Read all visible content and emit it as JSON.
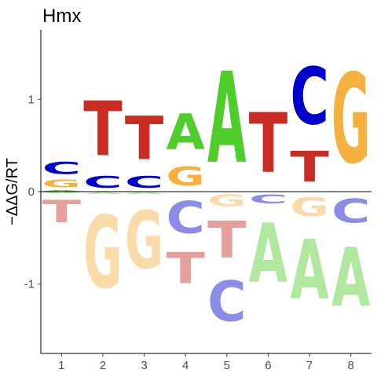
{
  "chart_data": {
    "type": "sequence-logo",
    "title": "Hmx",
    "ylabel": "−ΔΔG/RT",
    "xlabel": "",
    "ylim": [
      -1.75,
      1.75
    ],
    "yticks": [
      -1,
      0,
      1
    ],
    "positions": [
      "1",
      "2",
      "3",
      "4",
      "5",
      "6",
      "7",
      "8"
    ],
    "colors": {
      "A": "#4fcd2a",
      "C": "#0000cc",
      "G": "#f5b040",
      "T": "#c82c22"
    },
    "columns": [
      {
        "position": "1",
        "above": [
          {
            "base": "A",
            "value": 0.02
          },
          {
            "base": "G",
            "value": 0.13
          },
          {
            "base": "C",
            "value": 0.21
          }
        ],
        "below": [
          {
            "base": "A",
            "value": 0.02
          },
          {
            "base": "T",
            "value": 0.39
          }
        ]
      },
      {
        "position": "2",
        "above": [
          {
            "base": "C",
            "value": 0.2
          },
          {
            "base": "T",
            "value": 0.95
          }
        ],
        "below": [
          {
            "base": "A",
            "value": 0.03
          },
          {
            "base": "G",
            "value": 1.26
          }
        ]
      },
      {
        "position": "3",
        "above": [
          {
            "base": "C",
            "value": 0.2
          },
          {
            "base": "T",
            "value": 0.75
          }
        ],
        "below": [
          {
            "base": "A",
            "value": 0.03
          },
          {
            "base": "G",
            "value": 1.0
          }
        ]
      },
      {
        "position": "4",
        "above": [
          {
            "base": "G",
            "value": 0.33
          },
          {
            "base": "A",
            "value": 0.62
          }
        ],
        "below": [
          {
            "base": "C",
            "value": 0.56
          },
          {
            "base": "T",
            "value": 0.54
          }
        ]
      },
      {
        "position": "5",
        "above": [
          {
            "base": "A",
            "value": 1.58
          }
        ],
        "below": [
          {
            "base": "G",
            "value": 0.2
          },
          {
            "base": "T",
            "value": 0.64
          },
          {
            "base": "C",
            "value": 0.7
          }
        ]
      },
      {
        "position": "6",
        "above": [
          {
            "base": "T",
            "value": 1.04
          }
        ],
        "below": [
          {
            "base": "C",
            "value": 0.16
          },
          {
            "base": "A",
            "value": 1.03
          }
        ]
      },
      {
        "position": "7",
        "above": [
          {
            "base": "T",
            "value": 0.53
          },
          {
            "base": "C",
            "value": 0.99
          }
        ],
        "below": [
          {
            "base": "G",
            "value": 0.33
          },
          {
            "base": "A",
            "value": 1.04
          }
        ]
      },
      {
        "position": "8",
        "above": [
          {
            "base": "G",
            "value": 1.56
          }
        ],
        "below": [
          {
            "base": "C",
            "value": 0.42
          },
          {
            "base": "A",
            "value": 1.02
          }
        ]
      }
    ]
  }
}
